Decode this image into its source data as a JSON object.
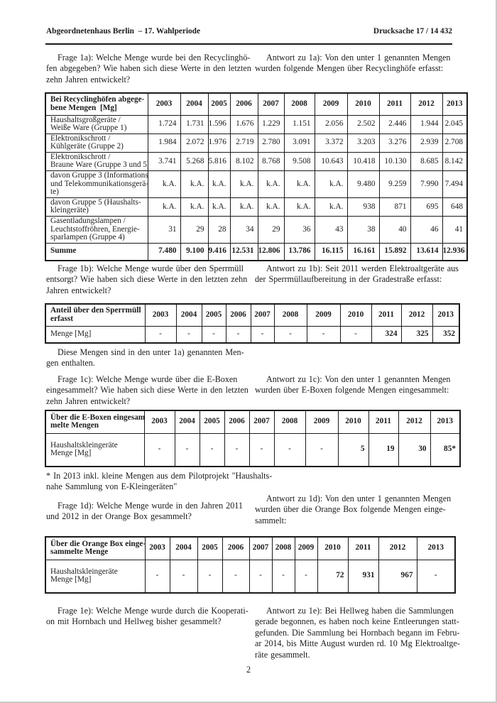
{
  "header": {
    "left": "Abgeordnetenhaus Berlin  – 17. Wahlperiode",
    "right": "Drucksache 17 / 14 432"
  },
  "qa": [
    {
      "id": "1a",
      "frage": "Frage 1a): Welche Menge wurde bei den Recyclinghö-\nfen abgegeben? Wie haben sich diese Werte in den letzten\nzehn Jahren entwickelt?",
      "antwort": "Antwort zu 1a): Von den unter 1 genannten Mengen\nwurden folgende Mengen über Recyclinghöfe erfasst:"
    },
    {
      "id": "1b",
      "frage": "Frage 1b): Welche Menge wurde über den Sperrmüll\nentsorgt? Wie haben sich diese Werte in den letzten zehn\nJahren entwickelt?",
      "antwort": "Antwort zu 1b): Seit 2011 werden Elektroaltgeräte aus\nder Sperrmüllaufbereitung in der Gradestraße erfasst:"
    },
    {
      "id": "1c",
      "frage": "Frage 1c): Welche Menge wurde über die E-Boxen\neingesammelt? Wie haben sich diese Werte in den letzten\nzehn Jahren entwickelt?",
      "antwort": "Antwort zu 1c): Von den unter 1 genannten Mengen\nwurden über E-Boxen folgende Mengen eingesammelt:"
    },
    {
      "id": "1d",
      "frage": "Frage 1d): Welche Menge wurde in den Jahren 2011\nund 2012 in der Orange Box gesammelt?",
      "antwort": "Antwort zu 1d): Von den unter 1 genannten Mengen\nwurden über die Orange Box folgende Mengen einge-\nsammelt:"
    },
    {
      "id": "1e",
      "frage": "Frage 1e): Welche Menge wurde durch die Kooperati-\non mit Hornbach und Hellweg bisher gesammelt?",
      "antwort": "Antwort zu 1e): Bei Hellweg haben die Sammlungen\ngerade begonnen, es haben noch keine Entleerungen statt-\ngefunden. Die Sammlung bei Hornbach begann im Febru-\nar 2014, bis Mitte August wurden rd. 10 Mg Elektroaltge-\nräte gesammelt."
    }
  ],
  "note_1a": "Diese Mengen sind in den unter 1a) genannten Men-\ngen enthalten.",
  "footnote_eboxen": "* In 2013 inkl. kleine Mengen aus dem Pilotprojekt \"Haushalts-\nnahe Sammlung von E-Kleingeräten\"",
  "page_number": "2",
  "tables": [
    {
      "title": "Bei Recyclinghöfen abgege-\nbene Mengen  [Mg]",
      "years": [
        "2003",
        "2004",
        "2005",
        "2006",
        "2007",
        "2008",
        "2009",
        "2010",
        "2011",
        "2012",
        "2013"
      ],
      "rows": [
        {
          "label": "Haushaltsgroßgeräte /\nWeiße Ware (Gruppe 1)",
          "values": [
            "1.724",
            "1.731",
            "1.596",
            "1.676",
            "1.229",
            "1.151",
            "2.056",
            "2.502",
            "2.446",
            "1.944",
            "2.045"
          ]
        },
        {
          "label": "Elektronikschrott /\nKühlgeräte (Gruppe 2)",
          "values": [
            "1.984",
            "2.072",
            "1.976",
            "2.719",
            "2.780",
            "3.091",
            "3.372",
            "3.203",
            "3.276",
            "2.939",
            "2.708"
          ]
        },
        {
          "label": "Elektronikschrott /\nBraune Ware (Gruppe 3 und 5)",
          "values": [
            "3.741",
            "5.268",
            "5.816",
            "8.102",
            "8.768",
            "9.508",
            "10.643",
            "10.418",
            "10.130",
            "8.685",
            "8.142"
          ]
        },
        {
          "label": "davon Gruppe 3 (Informations-\nund Telekommunikationsgerä-\nte)",
          "values": [
            "k.A.",
            "k.A.",
            "k.A.",
            "k.A.",
            "k.A.",
            "k.A.",
            "k.A.",
            "9.480",
            "9.259",
            "7.990",
            "7.494"
          ]
        },
        {
          "label": "davon Gruppe 5 (Haushalts-\nkleingeräte)",
          "values": [
            "k.A.",
            "k.A.",
            "k.A.",
            "k.A.",
            "k.A.",
            "k.A.",
            "k.A.",
            "938",
            "871",
            "695",
            "648"
          ]
        },
        {
          "label": "Gasentladungslampen /\nLeuchtstoffröhren, Energie-\nsparlampen (Gruppe 4)",
          "values": [
            "31",
            "29",
            "28",
            "34",
            "29",
            "36",
            "43",
            "38",
            "40",
            "46",
            "41"
          ]
        },
        {
          "label": "Summe",
          "bold": true,
          "values": [
            "7.480",
            "9.100",
            "9.416",
            "12.531",
            "12.806",
            "13.786",
            "16.115",
            "16.161",
            "15.892",
            "13.614",
            "12.936"
          ]
        }
      ]
    },
    {
      "title": "Anteil über den Sperrmüll\nerfasst",
      "years": [
        "2003",
        "2004",
        "2005",
        "2006",
        "2007",
        "2008",
        "2009",
        "2010",
        "2011",
        "2012",
        "2013"
      ],
      "rows": [
        {
          "label": "Menge [Mg]",
          "bold_from": 8,
          "values": [
            "-",
            "-",
            "-",
            "-",
            "-",
            "-",
            "-",
            "-",
            "324",
            "325",
            "352"
          ]
        }
      ]
    },
    {
      "title": "Über die E-Boxen eingesam-\nmelte Mengen",
      "years": [
        "2003",
        "2004",
        "2005",
        "2006",
        "2007",
        "2008",
        "2009",
        "2010",
        "2011",
        "2012",
        "2013"
      ],
      "rows": [
        {
          "label": "Haushaltskleingeräte\nMenge [Mg]",
          "bold_from": 7,
          "values": [
            "-",
            "-",
            "-",
            "-",
            "-",
            "-",
            "-",
            "5",
            "19",
            "30",
            "85*"
          ]
        }
      ]
    },
    {
      "title": "Über die Orange Box einge-\nsammelte Menge",
      "years": [
        "2003",
        "2004",
        "2005",
        "2006",
        "2007",
        "2008",
        "2009",
        "2010",
        "2011",
        "2012",
        "2013"
      ],
      "rows": [
        {
          "label": "Haushaltskleingeräte\nMenge [Mg]",
          "bold_from": 7,
          "values": [
            "-",
            "-",
            "-",
            "-",
            "-",
            "-",
            "-",
            "72",
            "931",
            "967",
            "-"
          ]
        }
      ]
    }
  ]
}
